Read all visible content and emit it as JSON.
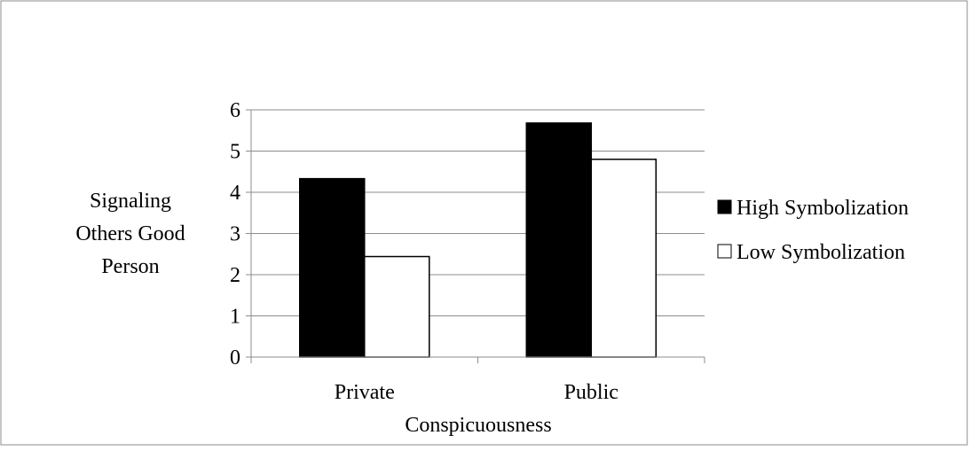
{
  "chart_data": {
    "type": "bar",
    "title": "",
    "xlabel": "Conspicuousness",
    "ylabel": [
      "Signaling",
      "Others Good",
      "Person"
    ],
    "categories": [
      "Private",
      "Public"
    ],
    "series": [
      {
        "name": "High Symbolization",
        "values": [
          4.33,
          5.68
        ],
        "color": "#000000"
      },
      {
        "name": "Low Symbolization",
        "values": [
          2.44,
          4.8
        ],
        "color": "#ffffff"
      }
    ],
    "ylim": [
      0,
      6
    ],
    "yticks": [
      "0",
      "1",
      "2",
      "3",
      "4",
      "5",
      "6"
    ],
    "grid": true,
    "legend": "right"
  }
}
